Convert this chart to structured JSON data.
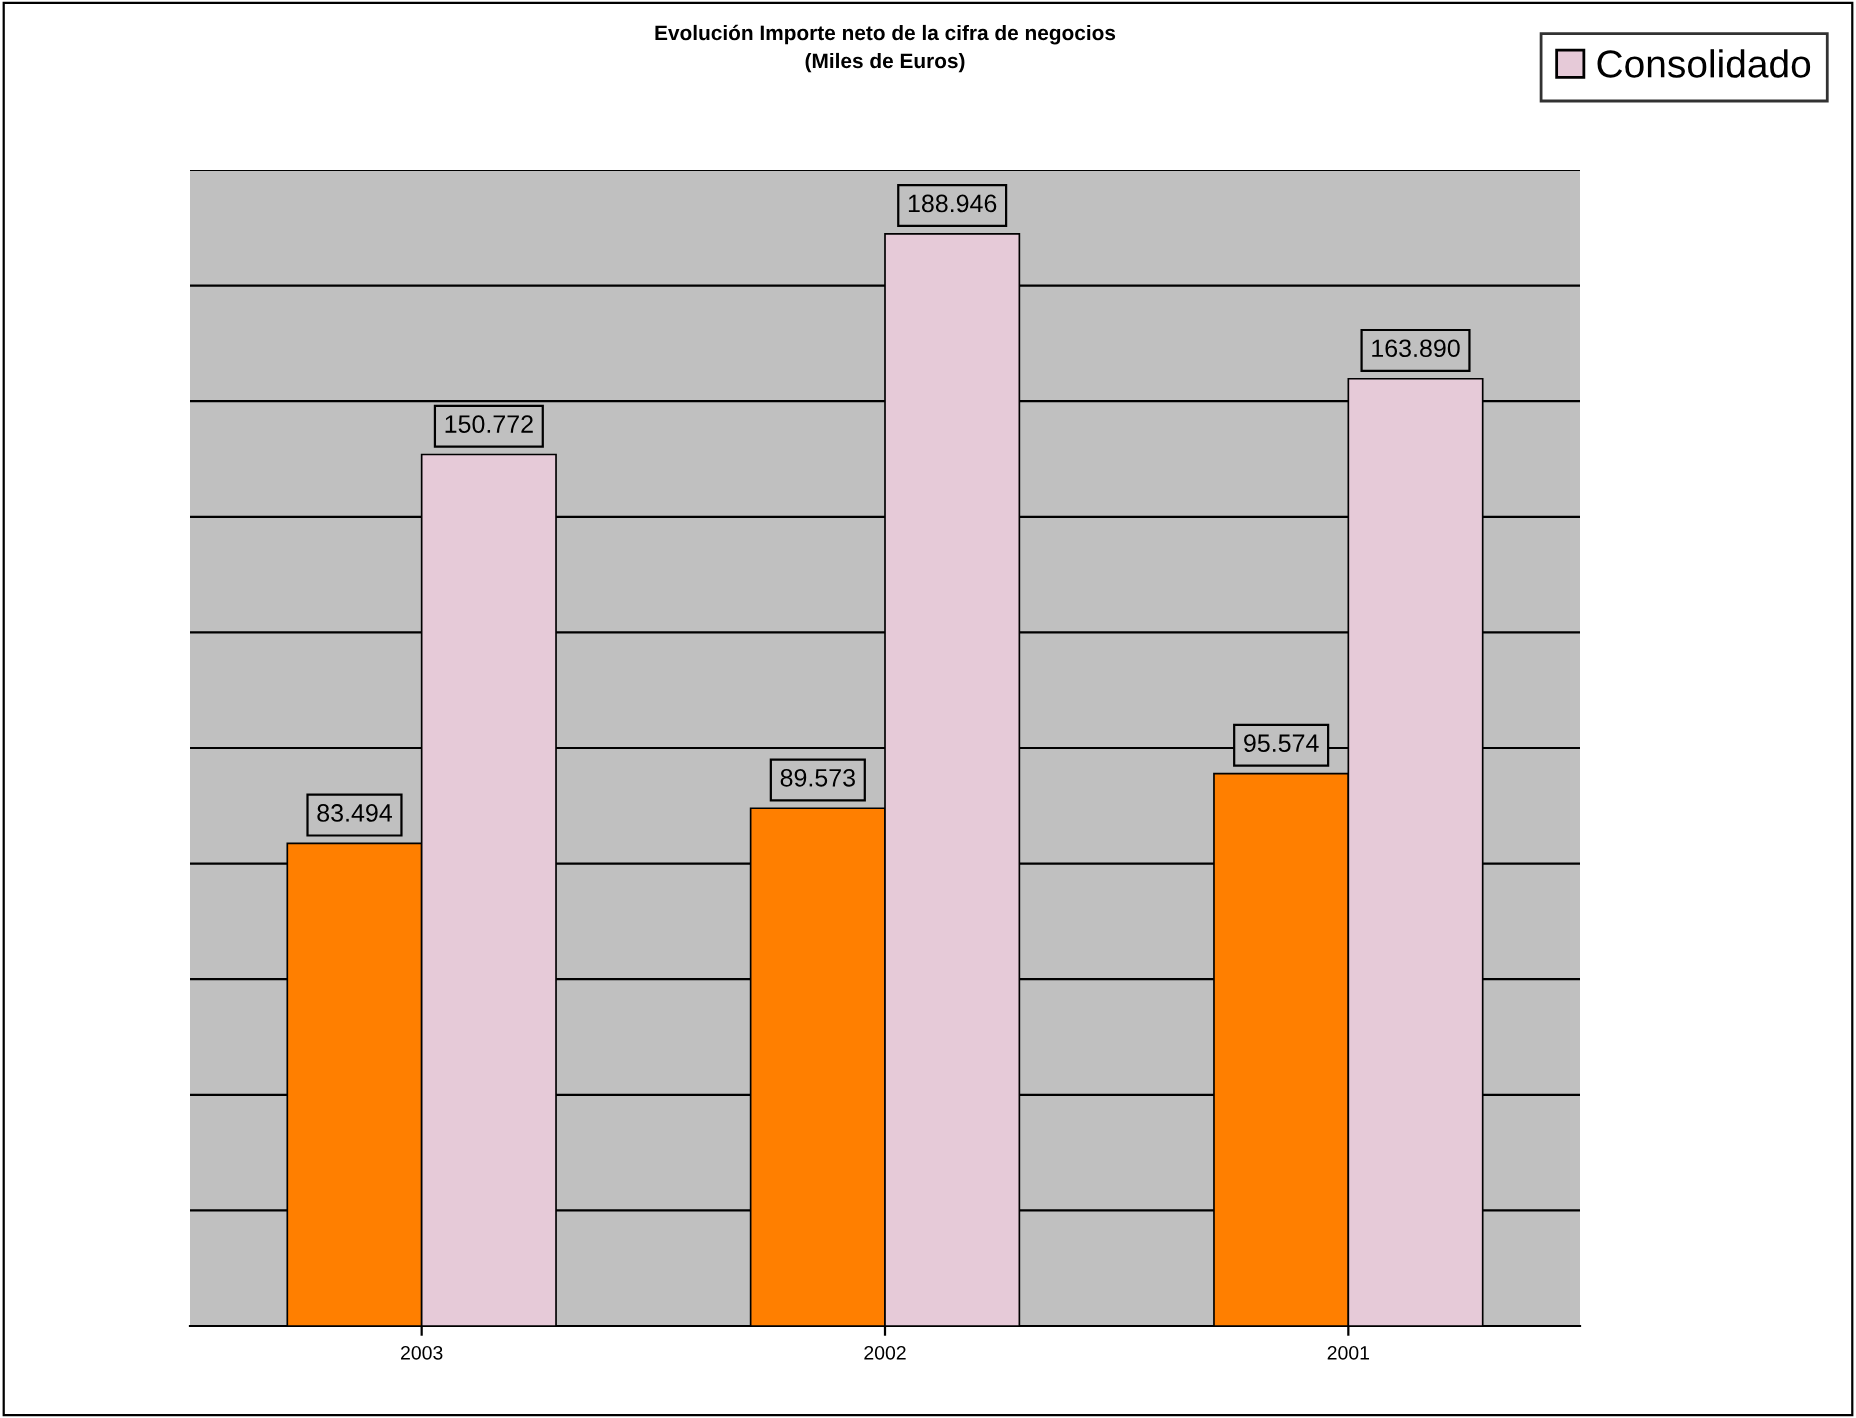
{
  "chart_data": {
    "type": "bar",
    "title": "Evolución Importe neto de la cifra de negocios",
    "subtitle": "(Miles de Euros)",
    "categories": [
      "2003",
      "2002",
      "2001"
    ],
    "series": [
      {
        "color": "#ff7f00",
        "values": [
          83494,
          89573,
          95574
        ],
        "value_labels": [
          "83.494",
          "89.573",
          "95.574"
        ]
      },
      {
        "name": "Consolidado",
        "color": "#e6cad8",
        "values": [
          150772,
          188946,
          163890
        ],
        "value_labels": [
          "150.772",
          "188.946",
          "163.890"
        ]
      }
    ],
    "ylim": [
      0,
      200000
    ],
    "yticks": [
      {
        "value": 0,
        "label": null
      },
      {
        "value": 20000,
        "label": null
      },
      {
        "value": 40000,
        "label": null
      },
      {
        "value": 60000,
        "label": null
      },
      {
        "value": 80000,
        "label": null
      },
      {
        "value": 100000,
        "label": null
      },
      {
        "value": 120000,
        "label": null
      },
      {
        "value": 140000,
        "label": null
      },
      {
        "value": 160000,
        "label": null
      },
      {
        "value": 180000,
        "label": null
      },
      {
        "value": 200000,
        "label": null
      }
    ],
    "tick_labels": "x",
    "grid": "y",
    "legend": "top right"
  }
}
